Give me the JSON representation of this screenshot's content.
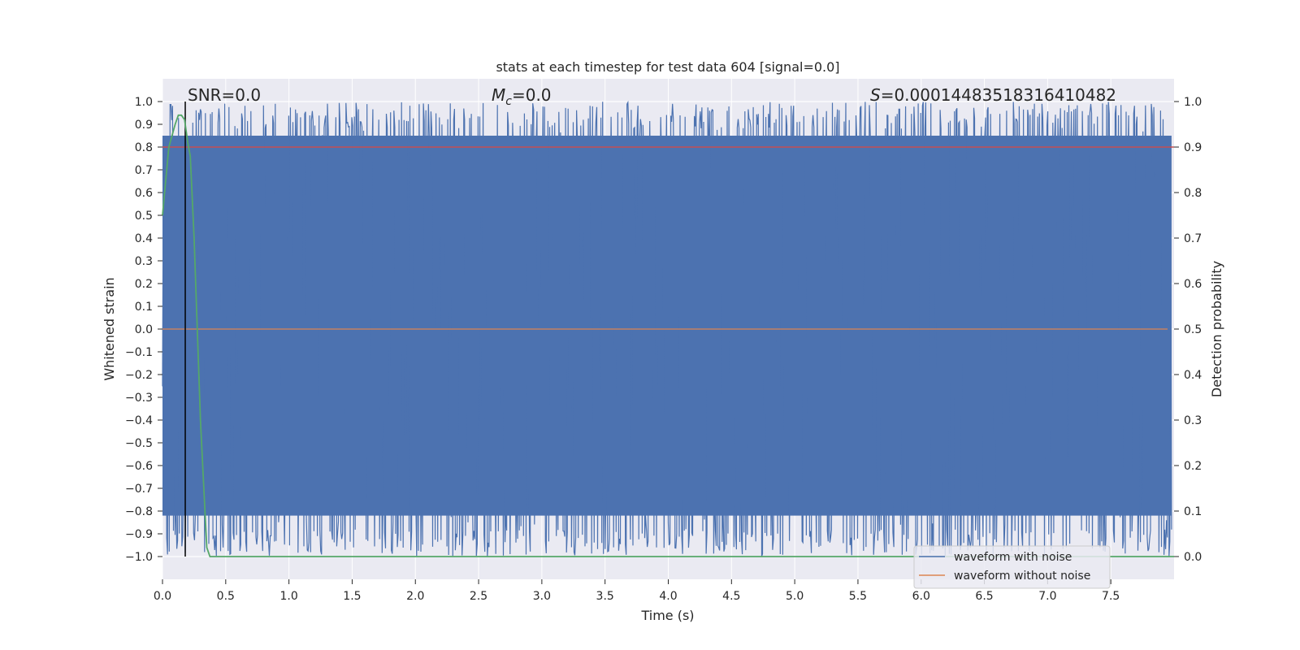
{
  "chart_data": {
    "type": "line",
    "title": "stats at each timestep for test data 604 [signal=0.0]",
    "xlabel": "Time (s)",
    "ylabel": "Whitened strain",
    "ylabel_right": "Detection probability",
    "xlim": [
      0.0,
      8.0
    ],
    "ylim": [
      -1.1,
      1.1
    ],
    "ylim_right": [
      -0.05,
      1.05
    ],
    "xticks": [
      "0.0",
      "0.5",
      "1.0",
      "1.5",
      "2.0",
      "2.5",
      "3.0",
      "3.5",
      "4.0",
      "4.5",
      "5.0",
      "5.5",
      "6.0",
      "6.5",
      "7.0",
      "7.5"
    ],
    "yticks": [
      "1.0",
      "0.9",
      "0.8",
      "0.7",
      "0.6",
      "0.5",
      "0.4",
      "0.3",
      "0.2",
      "0.1",
      "0.0",
      "−0.1",
      "−0.2",
      "−0.3",
      "−0.4",
      "−0.5",
      "−0.6",
      "−0.7",
      "−0.8",
      "−0.9",
      "−1.0"
    ],
    "yticks_right": [
      "1.0",
      "0.9",
      "0.8",
      "0.7",
      "0.6",
      "0.5",
      "0.4",
      "0.3",
      "0.2",
      "0.1",
      "0.0"
    ],
    "grid": true,
    "legend_placement": "lower-right",
    "annotations": {
      "snr": "SNR=0.0",
      "mc_symbol": "M",
      "mc_sub": "c",
      "mc_value": "=0.0",
      "s_symbol": "S",
      "s_value": "=0.00014483518316410482"
    },
    "series": [
      {
        "name": "waveform with noise",
        "color": "#4c72b0",
        "description_values": {
          "min": -1.0,
          "max": 1.0,
          "n_samples": 1200
        }
      },
      {
        "name": "waveform without noise",
        "color": "#dd8452",
        "values": {
          "x": [
            0.0,
            8.0
          ],
          "y": [
            0.0,
            0.0
          ]
        }
      },
      {
        "color": "#55a868",
        "axis": "right",
        "x": [
          0.0,
          0.05,
          0.1,
          0.125,
          0.15,
          0.175,
          0.2,
          0.22,
          0.25,
          0.3,
          0.35,
          0.375,
          0.4,
          8.0
        ],
        "y": [
          0.75,
          0.9,
          0.95,
          0.97,
          0.97,
          0.96,
          0.91,
          0.88,
          0.7,
          0.3,
          0.02,
          0.0,
          0.0,
          0.0
        ]
      }
    ],
    "hlines": [
      {
        "y_right": 0.9,
        "color": "#c44e52"
      }
    ],
    "vlines": [
      {
        "x": 0.18,
        "color": "#000000"
      }
    ],
    "colors": {
      "background": "#eaeaf2",
      "grid": "#ffffff",
      "noise": "#4c72b0",
      "clean": "#dd8452",
      "probability": "#55a868",
      "threshold": "#c44e52",
      "marker": "#000000"
    }
  }
}
